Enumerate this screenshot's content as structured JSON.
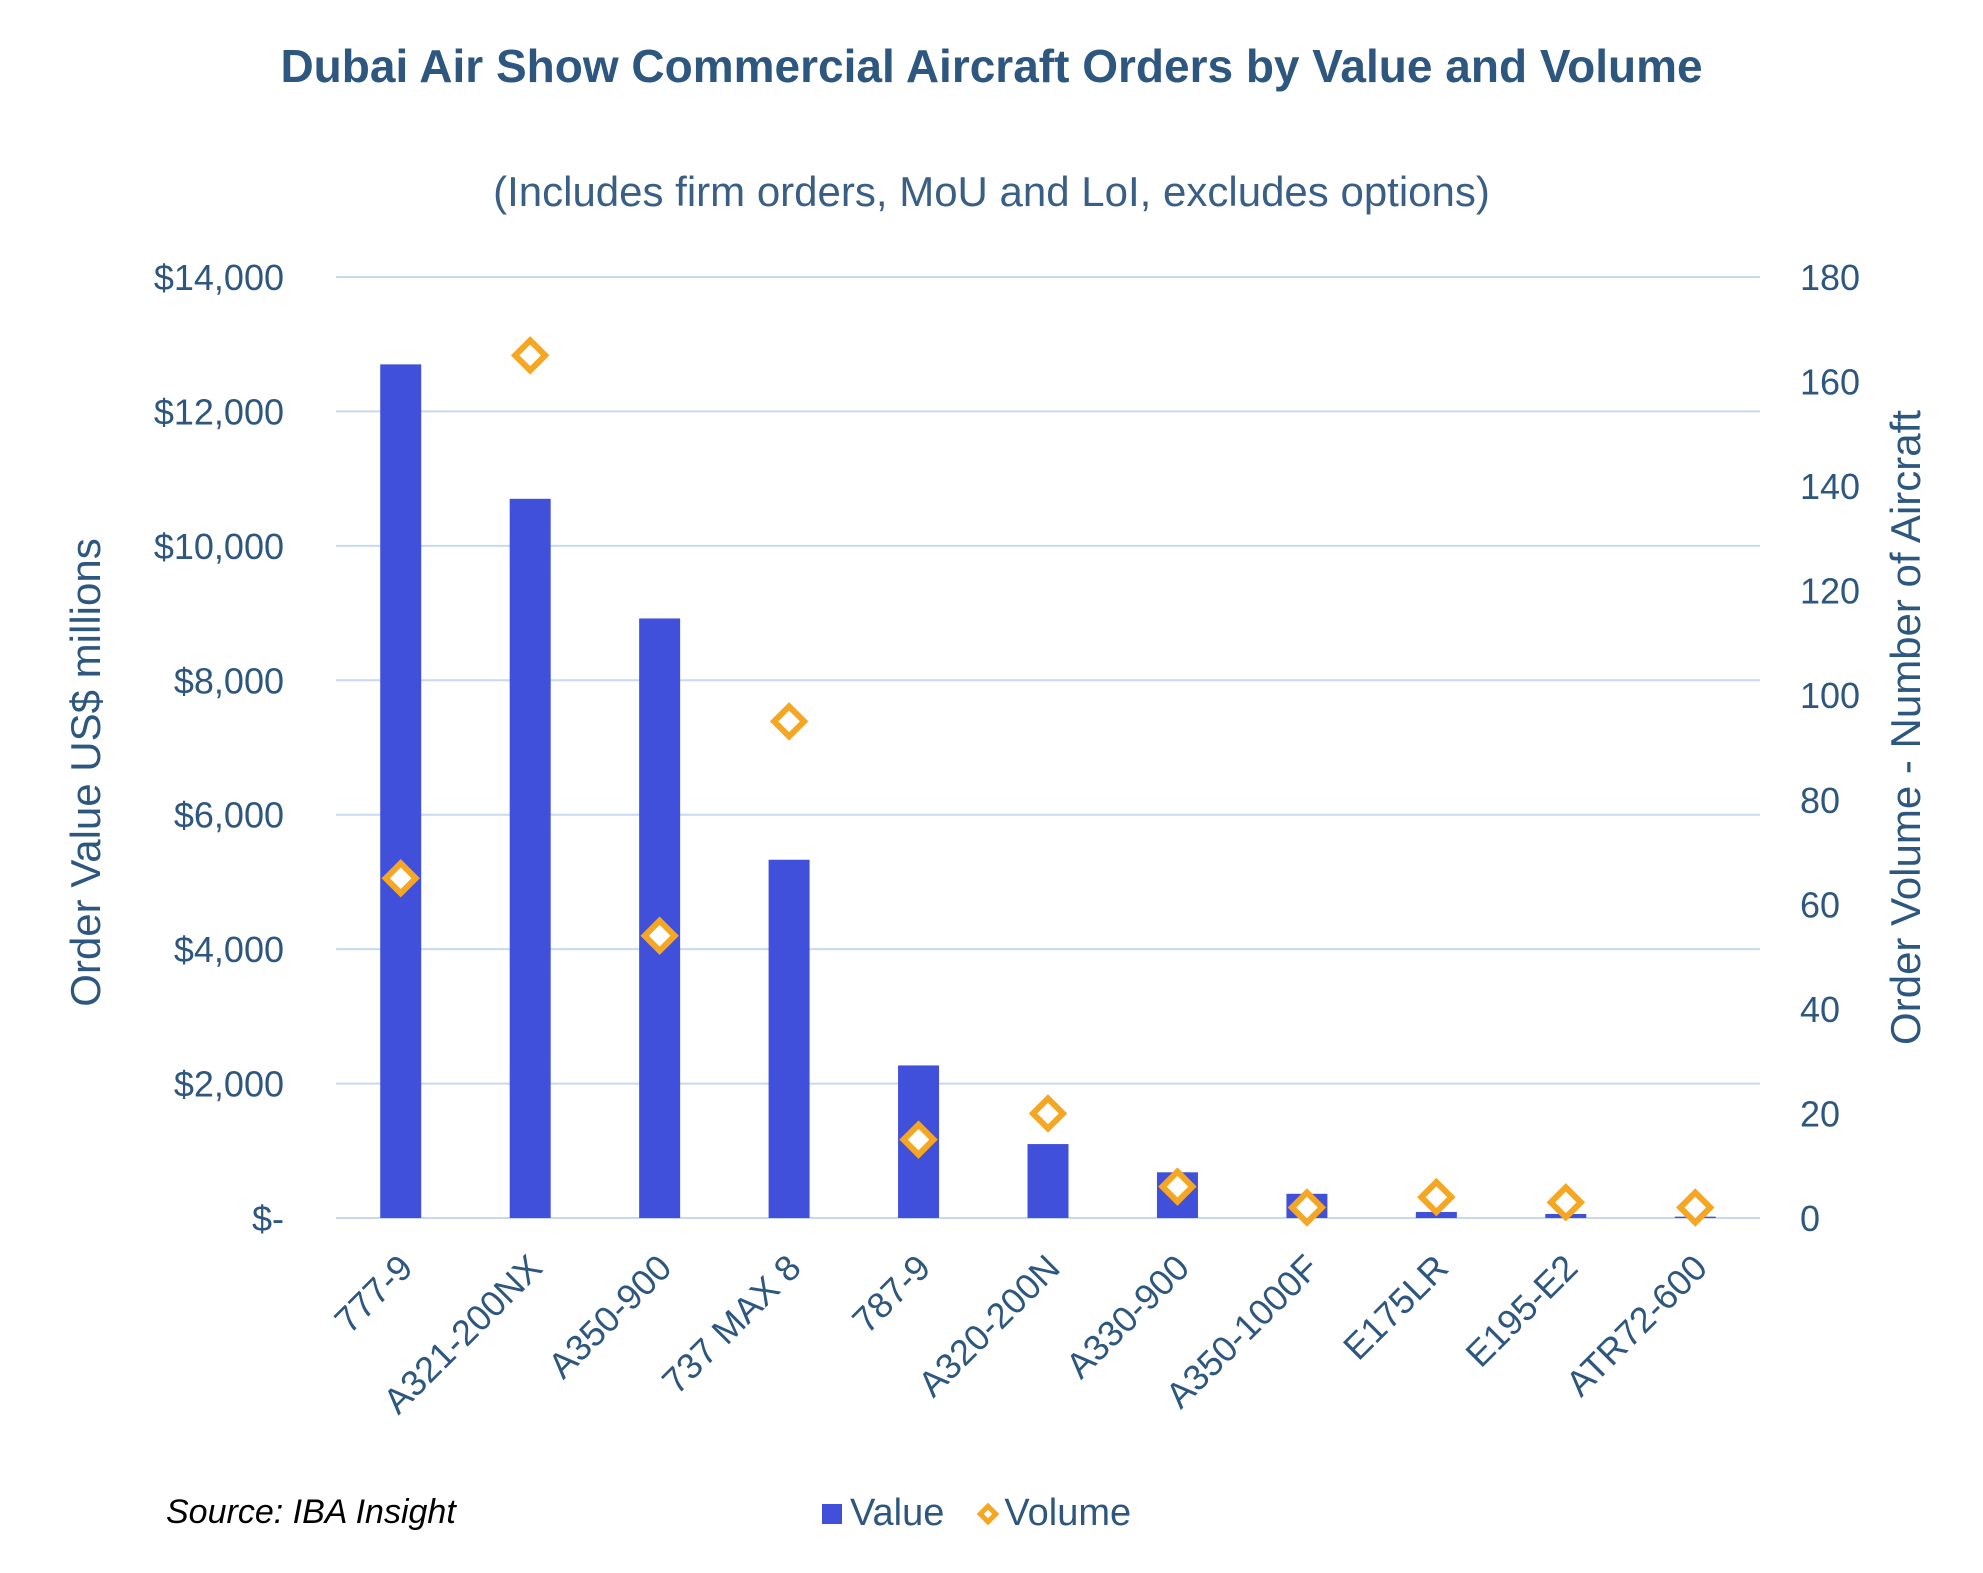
{
  "chart_data": {
    "type": "bar",
    "title": "Dubai Air Show Commercial Aircraft Orders by Value and Volume",
    "subtitle": "(Includes firm orders, MoU and LoI, excludes options)",
    "categories": [
      "777-9",
      "A321-200NX",
      "A350-900",
      "737 MAX 8",
      "787-9",
      "A320-200N",
      "A330-900",
      "A350-1000F",
      "E175LR",
      "E195-E2",
      "ATR72-600"
    ],
    "series": [
      {
        "name": "Value",
        "kind": "bar",
        "axis": "left",
        "color": "#4150da",
        "values": [
          12700,
          10700,
          8920,
          5330,
          2270,
          1100,
          680,
          360,
          90,
          60,
          20
        ]
      },
      {
        "name": "Volume",
        "kind": "marker",
        "marker": "diamond",
        "axis": "right",
        "color": "#f5a623",
        "values": [
          65,
          165,
          54,
          95,
          15,
          20,
          6,
          2,
          4,
          3,
          2
        ]
      }
    ],
    "ylabel": "Order Value US$ millions",
    "y2label": "Order Volume - Number of Aircraft",
    "ylim": [
      0,
      14000
    ],
    "y2lim": [
      0,
      180
    ],
    "yticks": [
      0,
      2000,
      4000,
      6000,
      8000,
      10000,
      12000,
      14000
    ],
    "yticklabels": [
      "$-",
      "$2,000",
      "$4,000",
      "$6,000",
      "$8,000",
      "$10,000",
      "$12,000",
      "$14,000"
    ],
    "y2ticks": [
      0,
      20,
      40,
      60,
      80,
      100,
      120,
      140,
      160,
      180
    ],
    "y2ticklabels": [
      "0",
      "20",
      "40",
      "60",
      "80",
      "100",
      "120",
      "140",
      "160",
      "180"
    ],
    "grid": true,
    "legend_position": "bottom"
  },
  "source": "Source: IBA Insight"
}
